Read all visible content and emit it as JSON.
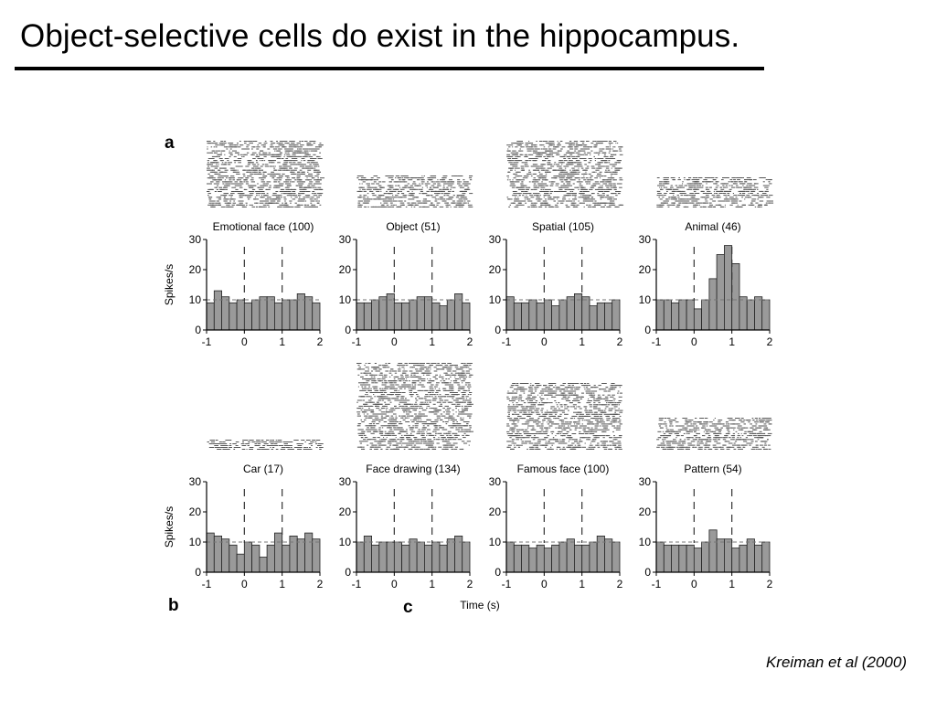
{
  "slide": {
    "title": "Object-selective cells do exist in the hippocampus.",
    "citation": "Kreiman et al (2000)"
  },
  "figure": {
    "panel_letters": [
      "a",
      "b",
      "c"
    ],
    "shared_xlabel": "Time (s)",
    "ylabel": "Spikes/s"
  },
  "colors": {
    "bar_fill": "#9a9a9a",
    "bar_stroke": "#222222",
    "raster": "#555555",
    "baseline": "#777777",
    "marker": "#333333"
  },
  "chart_data": [
    {
      "type": "bar",
      "title": "Emotional face (100)",
      "xlabel": "",
      "ylabel": "Spikes/s",
      "xlim": [
        -1,
        2
      ],
      "ylim": [
        0,
        30
      ],
      "xticks": [
        -1,
        0,
        1,
        2
      ],
      "yticks": [
        0,
        10,
        20,
        30
      ],
      "bin_width": 0.2,
      "stimulus_markers": [
        0,
        1
      ],
      "baseline": 10,
      "x": [
        -0.9,
        -0.7,
        -0.5,
        -0.3,
        -0.1,
        0.1,
        0.3,
        0.5,
        0.7,
        0.9,
        1.1,
        1.3,
        1.5,
        1.7,
        1.9
      ],
      "values": [
        9,
        13,
        11,
        9,
        10,
        9,
        10,
        11,
        11,
        9,
        10,
        10,
        12,
        11,
        9
      ],
      "raster_trials": 100
    },
    {
      "type": "bar",
      "title": "Object (51)",
      "xlabel": "",
      "ylabel": "",
      "xlim": [
        -1,
        2
      ],
      "ylim": [
        0,
        30
      ],
      "xticks": [
        -1,
        0,
        1,
        2
      ],
      "yticks": [
        0,
        10,
        20,
        30
      ],
      "bin_width": 0.2,
      "stimulus_markers": [
        0,
        1
      ],
      "baseline": 10,
      "x": [
        -0.9,
        -0.7,
        -0.5,
        -0.3,
        -0.1,
        0.1,
        0.3,
        0.5,
        0.7,
        0.9,
        1.1,
        1.3,
        1.5,
        1.7,
        1.9
      ],
      "values": [
        9,
        9,
        10,
        11,
        12,
        9,
        9,
        10,
        11,
        11,
        9,
        8,
        10,
        12,
        9
      ],
      "raster_trials": 51
    },
    {
      "type": "bar",
      "title": "Spatial (105)",
      "xlabel": "",
      "ylabel": "",
      "xlim": [
        -1,
        2
      ],
      "ylim": [
        0,
        30
      ],
      "xticks": [
        -1,
        0,
        1,
        2
      ],
      "yticks": [
        0,
        10,
        20,
        30
      ],
      "bin_width": 0.2,
      "stimulus_markers": [
        0,
        1
      ],
      "baseline": 10,
      "x": [
        -0.9,
        -0.7,
        -0.5,
        -0.3,
        -0.1,
        0.1,
        0.3,
        0.5,
        0.7,
        0.9,
        1.1,
        1.3,
        1.5,
        1.7,
        1.9
      ],
      "values": [
        11,
        9,
        9,
        10,
        9,
        10,
        8,
        10,
        11,
        12,
        11,
        8,
        9,
        9,
        10
      ],
      "raster_trials": 105
    },
    {
      "type": "bar",
      "title": "Animal (46)",
      "xlabel": "",
      "ylabel": "",
      "xlim": [
        -1,
        2
      ],
      "ylim": [
        0,
        30
      ],
      "xticks": [
        -1,
        0,
        1,
        2
      ],
      "yticks": [
        0,
        10,
        20,
        30
      ],
      "bin_width": 0.2,
      "stimulus_markers": [
        0,
        1
      ],
      "baseline": 10,
      "x": [
        -0.9,
        -0.7,
        -0.5,
        -0.3,
        -0.1,
        0.1,
        0.3,
        0.5,
        0.7,
        0.9,
        1.1,
        1.3,
        1.5,
        1.7,
        1.9
      ],
      "values": [
        10,
        10,
        9,
        10,
        10,
        7,
        10,
        17,
        25,
        28,
        22,
        11,
        10,
        11,
        10
      ],
      "raster_trials": 46
    },
    {
      "type": "bar",
      "title": "Car (17)",
      "xlabel": "",
      "ylabel": "Spikes/s",
      "xlim": [
        -1,
        2
      ],
      "ylim": [
        0,
        30
      ],
      "xticks": [
        -1,
        0,
        1,
        2
      ],
      "yticks": [
        0,
        10,
        20,
        30
      ],
      "bin_width": 0.2,
      "stimulus_markers": [
        0,
        1
      ],
      "baseline": 10,
      "x": [
        -0.9,
        -0.7,
        -0.5,
        -0.3,
        -0.1,
        0.1,
        0.3,
        0.5,
        0.7,
        0.9,
        1.1,
        1.3,
        1.5,
        1.7,
        1.9
      ],
      "values": [
        13,
        12,
        11,
        9,
        6,
        10,
        9,
        5,
        9,
        13,
        9,
        12,
        11,
        13,
        11
      ],
      "raster_trials": 17
    },
    {
      "type": "bar",
      "title": "Face drawing (134)",
      "xlabel": "",
      "ylabel": "",
      "xlim": [
        -1,
        2
      ],
      "ylim": [
        0,
        30
      ],
      "xticks": [
        -1,
        0,
        1,
        2
      ],
      "yticks": [
        0,
        10,
        20,
        30
      ],
      "bin_width": 0.2,
      "stimulus_markers": [
        0,
        1
      ],
      "baseline": 10,
      "x": [
        -0.9,
        -0.7,
        -0.5,
        -0.3,
        -0.1,
        0.1,
        0.3,
        0.5,
        0.7,
        0.9,
        1.1,
        1.3,
        1.5,
        1.7,
        1.9
      ],
      "values": [
        10,
        12,
        9,
        10,
        10,
        10,
        9,
        11,
        10,
        9,
        10,
        9,
        11,
        12,
        10
      ],
      "raster_trials": 134
    },
    {
      "type": "bar",
      "title": "Famous face (100)",
      "xlabel": "",
      "ylabel": "",
      "xlim": [
        -1,
        2
      ],
      "ylim": [
        0,
        30
      ],
      "xticks": [
        -1,
        0,
        1,
        2
      ],
      "yticks": [
        0,
        10,
        20,
        30
      ],
      "bin_width": 0.2,
      "stimulus_markers": [
        0,
        1
      ],
      "baseline": 10,
      "x": [
        -0.9,
        -0.7,
        -0.5,
        -0.3,
        -0.1,
        0.1,
        0.3,
        0.5,
        0.7,
        0.9,
        1.1,
        1.3,
        1.5,
        1.7,
        1.9
      ],
      "values": [
        10,
        9,
        9,
        8,
        9,
        8,
        9,
        10,
        11,
        9,
        9,
        10,
        12,
        11,
        10
      ],
      "raster_trials": 100
    },
    {
      "type": "bar",
      "title": "Pattern (54)",
      "xlabel": "",
      "ylabel": "",
      "xlim": [
        -1,
        2
      ],
      "ylim": [
        0,
        30
      ],
      "xticks": [
        -1,
        0,
        1,
        2
      ],
      "yticks": [
        0,
        10,
        20,
        30
      ],
      "bin_width": 0.2,
      "stimulus_markers": [
        0,
        1
      ],
      "baseline": 10,
      "x": [
        -0.9,
        -0.7,
        -0.5,
        -0.3,
        -0.1,
        0.1,
        0.3,
        0.5,
        0.7,
        0.9,
        1.1,
        1.3,
        1.5,
        1.7,
        1.9
      ],
      "values": [
        10,
        9,
        9,
        9,
        9,
        8,
        10,
        14,
        11,
        11,
        8,
        9,
        11,
        9,
        10
      ],
      "raster_trials": 54
    }
  ]
}
